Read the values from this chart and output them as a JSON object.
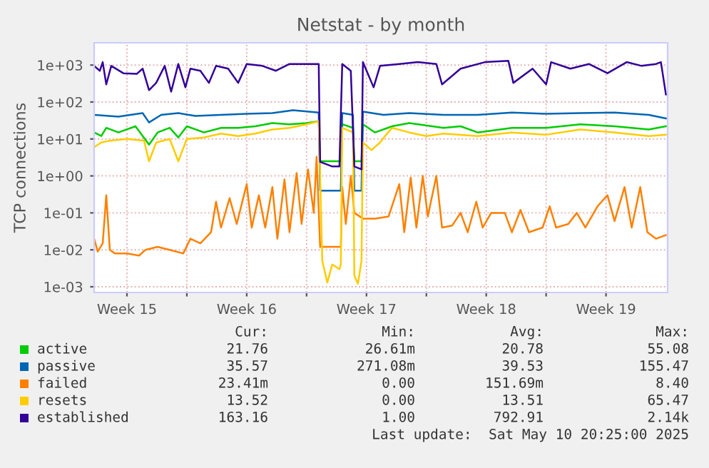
{
  "chart_data": {
    "type": "line",
    "title": "Netstat - by month",
    "ylabel": "TCP connections",
    "log": true,
    "grid": true,
    "legend": "bottom",
    "xlim": [
      "2025-04-07T08:00",
      "2025-05-10T20:25"
    ],
    "xticks": [
      {
        "value": "2025-04-09T06:00",
        "label": "Week 15"
      },
      {
        "value": "2025-04-12T18:00",
        "label": null
      },
      {
        "value": "2025-04-16T06:00",
        "label": "Week 16"
      },
      {
        "value": "2025-04-19T18:00",
        "label": null
      },
      {
        "value": "2025-04-23T06:00",
        "label": "Week 17"
      },
      {
        "value": "2025-04-26T18:00",
        "label": null
      },
      {
        "value": "2025-04-30T06:00",
        "label": "Week 18"
      },
      {
        "value": "2025-05-03T18:00",
        "label": null
      },
      {
        "value": "2025-05-07T06:00",
        "label": "Week 19"
      }
    ],
    "ylim": [
      0.0007,
      4000
    ],
    "yticks": [
      {
        "value": 0.001,
        "label": "1e-03"
      },
      {
        "value": 0.01,
        "label": "1e-02"
      },
      {
        "value": 0.1,
        "label": "1e-01"
      },
      {
        "value": 1,
        "label": "1e+00"
      },
      {
        "value": 10,
        "label": "1e+01"
      },
      {
        "value": 100,
        "label": "1e+02"
      },
      {
        "value": 1000,
        "label": "1e+03"
      }
    ],
    "series": [
      {
        "name": "active",
        "color": "#00cc00",
        "x": [
          "2025-04-07T08:00",
          "2025-04-07T18:00",
          "2025-04-08T01:00",
          "2025-04-08T18:00",
          "2025-04-09T18:00",
          "2025-04-10T13:00",
          "2025-04-11T01:00",
          "2025-04-11T18:00",
          "2025-04-12T06:00",
          "2025-04-12T18:00",
          "2025-04-13T18:00",
          "2025-04-14T18:00",
          "2025-04-15T18:00",
          "2025-04-16T18:00",
          "2025-04-17T18:00",
          "2025-04-18T18:00",
          "2025-04-19T18:00",
          "2025-04-20T11:00",
          "2025-04-20T13:00",
          "2025-04-21T18:00",
          "2025-04-21T20:00",
          "2025-04-22T11:00",
          "2025-04-22T13:00",
          "2025-04-22T23:00",
          "2025-04-23T01:00",
          "2025-04-23T18:00",
          "2025-04-24T18:00",
          "2025-04-25T18:00",
          "2025-04-27T18:00",
          "2025-04-28T18:00",
          "2025-04-29T18:00",
          "2025-05-01T18:00",
          "2025-05-03T18:00",
          "2025-05-05T18:00",
          "2025-05-07T18:00",
          "2025-05-09T18:00",
          "2025-05-10T18:00"
        ],
        "values": [
          15,
          12,
          20,
          15,
          22,
          7,
          15,
          20,
          11,
          22,
          15,
          20,
          20,
          22,
          27,
          25,
          27,
          30,
          2.5,
          2.5,
          25,
          20,
          2.5,
          2.5,
          25,
          15,
          22,
          27,
          20,
          22,
          15,
          20,
          20,
          25,
          22,
          18,
          22
        ]
      },
      {
        "name": "passive",
        "color": "#0066b3",
        "x": [
          "2025-04-07T08:00",
          "2025-04-08T18:00",
          "2025-04-10T04:00",
          "2025-04-10T13:00",
          "2025-04-11T06:00",
          "2025-04-12T06:00",
          "2025-04-13T06:00",
          "2025-04-14T18:00",
          "2025-04-16T06:00",
          "2025-04-17T18:00",
          "2025-04-18T23:00",
          "2025-04-20T11:00",
          "2025-04-20T13:00",
          "2025-04-21T18:00",
          "2025-04-21T20:00",
          "2025-04-22T11:00",
          "2025-04-22T13:00",
          "2025-04-22T23:00",
          "2025-04-23T01:00",
          "2025-04-24T06:00",
          "2025-04-25T18:00",
          "2025-04-27T18:00",
          "2025-04-29T18:00",
          "2025-05-01T18:00",
          "2025-05-03T18:00",
          "2025-05-05T18:00",
          "2025-05-07T18:00",
          "2025-05-09T18:00",
          "2025-05-10T18:00"
        ],
        "values": [
          45,
          40,
          50,
          28,
          45,
          50,
          42,
          45,
          48,
          50,
          60,
          52,
          0.4,
          0.4,
          50,
          45,
          0.4,
          0.4,
          55,
          45,
          50,
          45,
          45,
          52,
          48,
          50,
          52,
          45,
          36
        ]
      },
      {
        "name": "failed",
        "color": "#ff8000",
        "x": [
          "2025-04-07T08:00",
          "2025-04-07T13:00",
          "2025-04-07T20:00",
          "2025-04-08T01:00",
          "2025-04-08T06:00",
          "2025-04-08T13:00",
          "2025-04-09T06:00",
          "2025-04-09T23:00",
          "2025-04-10T08:00",
          "2025-04-11T01:00",
          "2025-04-11T18:00",
          "2025-04-12T13:00",
          "2025-04-12T23:00",
          "2025-04-13T13:00",
          "2025-04-14T04:00",
          "2025-04-14T11:00",
          "2025-04-14T18:00",
          "2025-04-15T06:00",
          "2025-04-15T16:00",
          "2025-04-16T06:00",
          "2025-04-16T13:00",
          "2025-04-16T23:00",
          "2025-04-17T08:00",
          "2025-04-17T18:00",
          "2025-04-18T01:00",
          "2025-04-18T11:00",
          "2025-04-18T18:00",
          "2025-04-19T04:00",
          "2025-04-19T11:00",
          "2025-04-19T20:00",
          "2025-04-20T04:00",
          "2025-04-20T08:00",
          "2025-04-20T13:00",
          "2025-04-21T18:00",
          "2025-04-21T20:00",
          "2025-04-22T01:00",
          "2025-04-22T08:00",
          "2025-04-22T13:00",
          "2025-04-23T01:00",
          "2025-04-23T18:00",
          "2025-04-24T13:00",
          "2025-04-25T04:00",
          "2025-04-25T11:00",
          "2025-04-25T20:00",
          "2025-04-26T04:00",
          "2025-04-26T13:00",
          "2025-04-26T20:00",
          "2025-04-27T08:00",
          "2025-04-27T16:00",
          "2025-04-28T06:00",
          "2025-04-28T18:00",
          "2025-04-29T04:00",
          "2025-04-29T16:00",
          "2025-04-30T01:00",
          "2025-04-30T13:00",
          "2025-05-01T08:00",
          "2025-05-01T18:00",
          "2025-05-02T06:00",
          "2025-05-02T18:00",
          "2025-05-03T13:00",
          "2025-05-03T23:00",
          "2025-05-04T08:00",
          "2025-05-05T01:00",
          "2025-05-05T13:00",
          "2025-05-06T01:00",
          "2025-05-06T18:00",
          "2025-05-07T08:00",
          "2025-05-07T18:00",
          "2025-05-08T08:00",
          "2025-05-08T18:00",
          "2025-05-09T06:00",
          "2025-05-09T16:00",
          "2025-05-10T04:00",
          "2025-05-10T18:00"
        ],
        "values": [
          0.02,
          0.009,
          0.015,
          0.3,
          0.01,
          0.008,
          0.008,
          0.007,
          0.01,
          0.012,
          0.01,
          0.008,
          0.02,
          0.015,
          0.03,
          0.2,
          0.04,
          0.25,
          0.05,
          0.6,
          0.04,
          0.3,
          0.04,
          0.5,
          0.02,
          0.8,
          0.03,
          1.2,
          0.05,
          1.5,
          0.1,
          3.3,
          0.012,
          0.012,
          0.5,
          0.05,
          1.0,
          0.1,
          0.07,
          0.07,
          0.08,
          0.6,
          0.03,
          0.9,
          0.04,
          1.0,
          0.08,
          1.0,
          0.04,
          0.045,
          0.1,
          0.03,
          0.2,
          0.04,
          0.1,
          0.1,
          0.03,
          0.12,
          0.03,
          0.04,
          0.15,
          0.04,
          0.05,
          0.1,
          0.04,
          0.15,
          0.3,
          0.06,
          0.5,
          0.04,
          0.5,
          0.03,
          0.02,
          0.025
        ]
      },
      {
        "name": "resets",
        "color": "#ffcc00",
        "x": [
          "2025-04-07T08:00",
          "2025-04-07T18:00",
          "2025-04-08T06:00",
          "2025-04-09T06:00",
          "2025-04-10T06:00",
          "2025-04-10T13:00",
          "2025-04-10T23:00",
          "2025-04-11T18:00",
          "2025-04-12T06:00",
          "2025-04-12T18:00",
          "2025-04-13T18:00",
          "2025-04-14T18:00",
          "2025-04-15T18:00",
          "2025-04-16T18:00",
          "2025-04-17T18:00",
          "2025-04-18T18:00",
          "2025-04-19T18:00",
          "2025-04-20T11:00",
          "2025-04-20T16:00",
          "2025-04-20T23:00",
          "2025-04-21T06:00",
          "2025-04-21T16:00",
          "2025-04-21T18:00",
          "2025-04-21T20:00",
          "2025-04-22T11:00",
          "2025-04-22T13:00",
          "2025-04-22T18:00",
          "2025-04-22T23:00",
          "2025-04-23T01:00",
          "2025-04-23T13:00",
          "2025-04-24T01:00",
          "2025-04-24T08:00",
          "2025-04-24T18:00",
          "2025-04-25T18:00",
          "2025-04-26T18:00",
          "2025-04-27T18:00",
          "2025-04-29T18:00",
          "2025-05-01T18:00",
          "2025-05-03T18:00",
          "2025-05-05T18:00",
          "2025-05-07T18:00",
          "2025-05-09T18:00",
          "2025-05-10T18:00"
        ],
        "values": [
          6,
          8,
          9,
          10,
          9,
          2.5,
          8,
          10,
          2.5,
          10,
          11,
          14,
          12,
          14,
          18,
          20,
          25,
          30,
          0.005,
          0.0013,
          0.004,
          0.003,
          0.004,
          20,
          15,
          0.002,
          0.0012,
          0.005,
          8,
          5,
          8,
          12,
          20,
          15,
          12,
          14,
          12,
          15,
          13,
          18,
          15,
          12,
          13
        ]
      },
      {
        "name": "established",
        "color": "#330099",
        "x": [
          "2025-04-07T08:00",
          "2025-04-07T16:00",
          "2025-04-07T20:00",
          "2025-04-08T01:00",
          "2025-04-08T08:00",
          "2025-04-09T01:00",
          "2025-04-09T20:00",
          "2025-04-10T04:00",
          "2025-04-10T13:00",
          "2025-04-10T23:00",
          "2025-04-11T11:00",
          "2025-04-11T20:00",
          "2025-04-12T06:00",
          "2025-04-12T16:00",
          "2025-04-12T23:00",
          "2025-04-13T13:00",
          "2025-04-14T01:00",
          "2025-04-14T11:00",
          "2025-04-15T04:00",
          "2025-04-15T18:00",
          "2025-04-16T06:00",
          "2025-04-17T04:00",
          "2025-04-17T23:00",
          "2025-04-18T18:00",
          "2025-04-19T16:00",
          "2025-04-20T11:00",
          "2025-04-20T13:00",
          "2025-04-21T06:00",
          "2025-04-21T16:00",
          "2025-04-21T20:00",
          "2025-04-22T08:00",
          "2025-04-22T13:00",
          "2025-04-22T23:00",
          "2025-04-23T01:00",
          "2025-04-23T16:00",
          "2025-04-24T01:00",
          "2025-04-25T04:00",
          "2025-04-26T06:00",
          "2025-04-27T08:00",
          "2025-04-27T16:00",
          "2025-04-28T18:00",
          "2025-04-30T04:00",
          "2025-05-01T13:00",
          "2025-05-01T20:00",
          "2025-05-02T23:00",
          "2025-05-03T18:00",
          "2025-05-04T01:00",
          "2025-05-05T04:00",
          "2025-05-06T06:00",
          "2025-05-07T08:00",
          "2025-05-08T11:00",
          "2025-05-09T08:00",
          "2025-05-10T04:00",
          "2025-05-10T11:00",
          "2025-05-10T18:00"
        ],
        "values": [
          950,
          700,
          1200,
          300,
          950,
          600,
          580,
          800,
          210,
          330,
          950,
          190,
          1070,
          250,
          800,
          700,
          330,
          950,
          800,
          330,
          1070,
          950,
          700,
          1070,
          1070,
          1070,
          2.4,
          1.8,
          1.8,
          1070,
          700,
          1.8,
          1.5,
          1200,
          250,
          950,
          1070,
          1200,
          1070,
          300,
          800,
          1200,
          1300,
          330,
          800,
          300,
          1200,
          800,
          1070,
          600,
          1200,
          950,
          1070,
          1200,
          160
        ]
      }
    ],
    "annotations": [
      "Cur:",
      "Min:",
      "Avg:",
      "Max:",
      "21.76",
      "26.61m",
      "20.78",
      "55.08",
      "35.57",
      "271.08m",
      "39.53",
      "155.47",
      "23.41m",
      "0.00",
      "151.69m",
      "8.40",
      "13.52",
      "0.00",
      "13.51",
      "65.47",
      "163.16",
      "1.00",
      "792.91",
      "2.14k",
      "Last update:  Sat May 10 20:25:00 2025"
    ]
  }
}
